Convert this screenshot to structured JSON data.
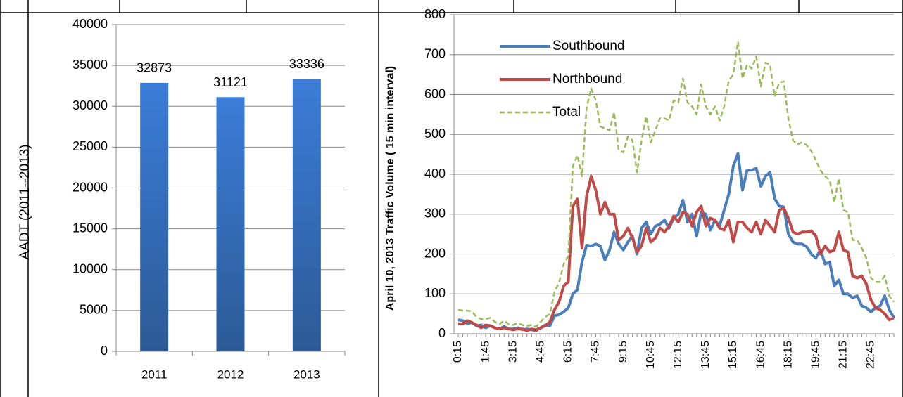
{
  "chart_data": [
    {
      "type": "bar",
      "y_label": "AADT (2011--2013)",
      "categories": [
        "2011",
        "2012",
        "2013"
      ],
      "values": [
        32873,
        31121,
        33336
      ],
      "color": "#3b7dd8",
      "ylim": [
        0,
        40000
      ],
      "yticks": [
        0,
        5000,
        10000,
        15000,
        20000,
        25000,
        30000,
        35000,
        40000
      ],
      "grid": true
    },
    {
      "type": "line",
      "y_label": "April 10, 2013 Traffic Volume ( 15 min interval)",
      "legend": "upper left",
      "grid": true,
      "ylim": [
        0,
        800
      ],
      "yticks": [
        0,
        100,
        200,
        300,
        400,
        500,
        600,
        700,
        800
      ],
      "categories": [
        "0:15",
        null,
        null,
        null,
        null,
        null,
        "1:45",
        null,
        null,
        null,
        null,
        null,
        "3:15",
        null,
        null,
        null,
        null,
        null,
        "4:45",
        null,
        null,
        null,
        null,
        null,
        "6:15",
        null,
        null,
        null,
        null,
        null,
        "7:45",
        null,
        null,
        null,
        null,
        null,
        "9:15",
        null,
        null,
        null,
        null,
        null,
        "10:45",
        null,
        null,
        null,
        null,
        null,
        "12:15",
        null,
        null,
        null,
        null,
        null,
        "13:45",
        null,
        null,
        null,
        null,
        null,
        "15:15",
        null,
        null,
        null,
        null,
        null,
        "16:45",
        null,
        null,
        null,
        null,
        null,
        "18:15",
        null,
        null,
        null,
        null,
        null,
        "19:45",
        null,
        null,
        null,
        null,
        null,
        "21:15",
        null,
        null,
        null,
        null,
        null,
        "22:45",
        null,
        null,
        null,
        null,
        null
      ],
      "series": [
        {
          "name": "Southbound",
          "color": "#4a7ebb",
          "dash": false,
          "values": [
            35,
            33,
            25,
            28,
            20,
            22,
            15,
            20,
            15,
            12,
            18,
            12,
            12,
            15,
            10,
            12,
            10,
            8,
            15,
            22,
            20,
            45,
            48,
            55,
            65,
            100,
            110,
            180,
            222,
            220,
            225,
            220,
            185,
            210,
            255,
            225,
            210,
            230,
            245,
            200,
            265,
            280,
            250,
            270,
            275,
            285,
            265,
            290,
            300,
            335,
            280,
            300,
            245,
            305,
            300,
            260,
            285,
            270,
            310,
            350,
            420,
            452,
            360,
            410,
            410,
            415,
            370,
            395,
            405,
            340,
            320,
            318,
            250,
            230,
            225,
            225,
            218,
            200,
            190,
            210,
            175,
            180,
            120,
            135,
            100,
            100,
            90,
            95,
            70,
            65,
            55,
            65,
            70,
            95,
            60,
            40
          ]
        },
        {
          "name": "Northbound",
          "color": "#be4b48",
          "dash": false,
          "values": [
            25,
            25,
            33,
            28,
            22,
            15,
            22,
            20,
            15,
            12,
            15,
            12,
            10,
            12,
            12,
            8,
            12,
            10,
            15,
            20,
            30,
            60,
            80,
            120,
            130,
            320,
            338,
            215,
            345,
            395,
            360,
            300,
            330,
            300,
            300,
            235,
            245,
            265,
            240,
            205,
            220,
            265,
            230,
            240,
            265,
            255,
            270,
            295,
            280,
            305,
            300,
            270,
            305,
            320,
            270,
            290,
            285,
            265,
            260,
            285,
            230,
            280,
            280,
            265,
            255,
            280,
            250,
            285,
            270,
            255,
            310,
            315,
            290,
            255,
            250,
            255,
            255,
            258,
            245,
            200,
            220,
            205,
            210,
            255,
            210,
            205,
            145,
            140,
            145,
            125,
            85,
            65,
            60,
            50,
            35,
            40
          ]
        },
        {
          "name": "Total",
          "color": "#9bbb59",
          "dash": true,
          "values": [
            60,
            58,
            58,
            56,
            42,
            37,
            37,
            40,
            30,
            24,
            33,
            24,
            22,
            27,
            22,
            20,
            22,
            18,
            30,
            42,
            50,
            105,
            128,
            175,
            195,
            420,
            448,
            395,
            567,
            615,
            585,
            520,
            515,
            510,
            555,
            460,
            455,
            495,
            485,
            405,
            485,
            545,
            480,
            510,
            540,
            540,
            535,
            585,
            580,
            640,
            580,
            570,
            550,
            625,
            570,
            550,
            570,
            535,
            570,
            635,
            650,
            732,
            640,
            675,
            665,
            695,
            620,
            680,
            675,
            595,
            630,
            633,
            540,
            485,
            475,
            480,
            473,
            458,
            435,
            410,
            395,
            385,
            330,
            390,
            310,
            305,
            235,
            235,
            215,
            190,
            140,
            130,
            130,
            145,
            95,
            80
          ]
        }
      ]
    }
  ]
}
